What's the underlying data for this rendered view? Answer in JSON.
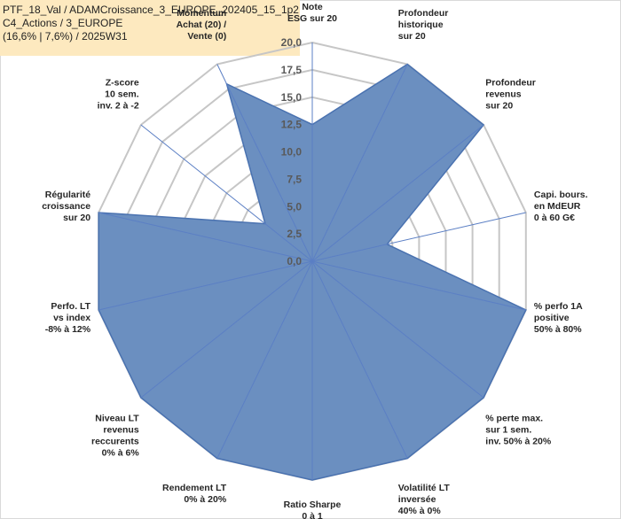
{
  "title_lines": [
    "PTF_18_Val / ADAMCroissance_3_EUROPE_202405_15_1p2",
    "C4_Actions / 3_EUROPE",
    "(16,6% | 7,6%) / 2025W31"
  ],
  "chart_data": {
    "type": "radar",
    "rmin": 0,
    "rmax": 20,
    "ticks": [
      "0,0",
      "2,5",
      "5,0",
      "7,5",
      "10,0",
      "12,5",
      "15,0",
      "17,5",
      "20,0"
    ],
    "axes": [
      {
        "lines": [
          "Note",
          "ESG sur 20"
        ]
      },
      {
        "lines": [
          "Profondeur",
          "historique",
          "sur 20"
        ]
      },
      {
        "lines": [
          "Profondeur",
          "revenus",
          "sur 20"
        ]
      },
      {
        "lines": [
          "Capi. bours.",
          "en MdEUR",
          "0 à 60 G€"
        ]
      },
      {
        "lines": [
          "% perfo 1A",
          "positive",
          "50% à 80%"
        ]
      },
      {
        "lines": [
          "% perte max.",
          "sur 1 sem.",
          "inv. 50% à 20%"
        ]
      },
      {
        "lines": [
          "Volatilité LT",
          "inversée",
          "40% à 0%"
        ]
      },
      {
        "lines": [
          "Ratio Sharpe",
          "0 à 1"
        ]
      },
      {
        "lines": [
          "Rendement LT",
          "0% à 20%"
        ]
      },
      {
        "lines": [
          "Niveau LT",
          "revenus",
          "reccurents",
          "0% à 6%"
        ]
      },
      {
        "lines": [
          "Perfo. LT",
          "vs index",
          "-8% à 12%"
        ]
      },
      {
        "lines": [
          "Régularité",
          "croissance",
          "sur 20"
        ]
      },
      {
        "lines": [
          "Z-score",
          "10 sem.",
          "inv. 2 à -2"
        ]
      },
      {
        "lines": [
          "Momentum",
          "Achat (20) /",
          "Vente (0)"
        ],
        "highlight": 0
      }
    ],
    "values": [
      12.5,
      20,
      20,
      7,
      20,
      20,
      20,
      20,
      20,
      20,
      20,
      20,
      5.5,
      18
    ],
    "colors": {
      "fill": "#6b8fc0",
      "stroke": "#4a72b0",
      "grid": "#c6c6c6",
      "spoke": "#5b7fc4",
      "highlight": "#b48a3c"
    }
  }
}
